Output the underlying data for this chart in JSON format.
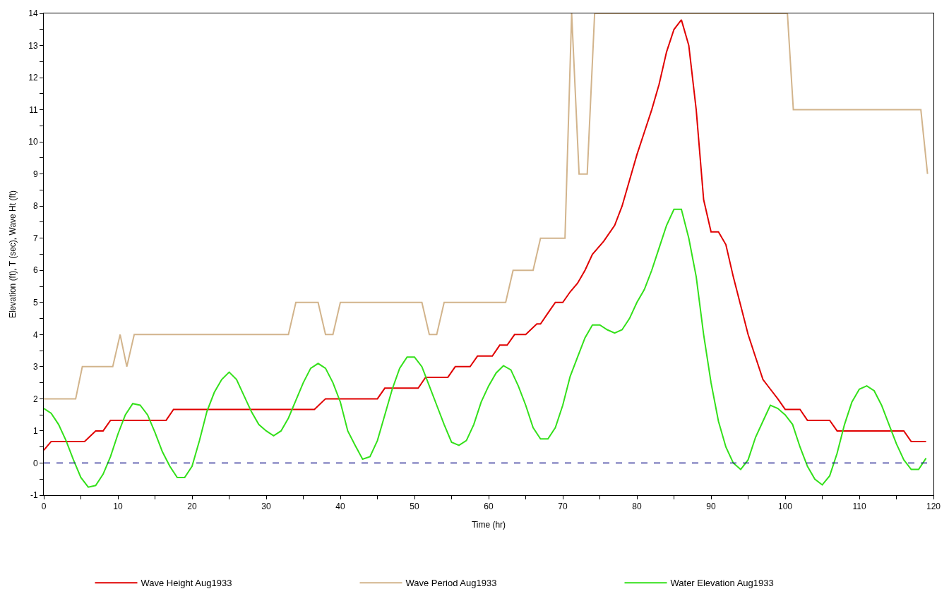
{
  "chart_data": {
    "type": "line",
    "xlabel": "Time (hr)",
    "ylabel": "Elevation (ft), T (sec), Wave Ht (ft)",
    "xlim": [
      0,
      120
    ],
    "ylim": [
      -1,
      14
    ],
    "xticks": [
      0,
      {
        "value": 5,
        "label": null
      },
      10,
      {
        "value": 15,
        "label": null
      },
      20,
      {
        "value": 25,
        "label": null
      },
      30,
      {
        "value": 35,
        "label": null
      },
      40,
      {
        "value": 45,
        "label": null
      },
      50,
      {
        "value": 55,
        "label": null
      },
      60,
      {
        "value": 65,
        "label": null
      },
      70,
      {
        "value": 75,
        "label": null
      },
      80,
      {
        "value": 85,
        "label": null
      },
      90,
      {
        "value": 95,
        "label": null
      },
      100,
      {
        "value": 105,
        "label": null
      },
      110,
      {
        "value": 115,
        "label": null
      },
      120
    ],
    "yticks": [
      -1,
      {
        "value": -0.5,
        "label": null
      },
      0,
      {
        "value": 0.5,
        "label": null
      },
      1,
      {
        "value": 1.5,
        "label": null
      },
      2,
      {
        "value": 2.5,
        "label": null
      },
      3,
      {
        "value": 3.5,
        "label": null
      },
      4,
      {
        "value": 4.5,
        "label": null
      },
      5,
      {
        "value": 5.5,
        "label": null
      },
      6,
      {
        "value": 6.5,
        "label": null
      },
      7,
      {
        "value": 7.5,
        "label": null
      },
      8,
      {
        "value": 8.5,
        "label": null
      },
      9,
      {
        "value": 9.5,
        "label": null
      },
      10,
      {
        "value": 10.5,
        "label": null
      },
      11,
      {
        "value": 11.5,
        "label": null
      },
      12,
      {
        "value": 12.5,
        "label": null
      },
      13,
      {
        "value": 13.5,
        "label": null
      },
      14
    ],
    "legend": "bottom",
    "marker": "none",
    "line_style": "solid",
    "ref_lines": [
      {
        "axis": "y",
        "value": 0,
        "label": null,
        "color": "#000080",
        "line_style": "dashed"
      }
    ],
    "series": [
      {
        "name": "Wave Height Aug1933",
        "color": "#e00000",
        "x": [
          0,
          1,
          5.5,
          7,
          8,
          9,
          16.5,
          17.5,
          36.5,
          38,
          45,
          46,
          50.5,
          51.5,
          54.5,
          55.5,
          57.5,
          58.5,
          60.5,
          61.5,
          62.5,
          63.5,
          65,
          66.5,
          67,
          68,
          69,
          70,
          71,
          72,
          73,
          74,
          75.5,
          77,
          78,
          79,
          80,
          81,
          82,
          83,
          84,
          85,
          86,
          87,
          88,
          89,
          90,
          91,
          92,
          93,
          94,
          95,
          96,
          97,
          98,
          99,
          100,
          102,
          103,
          106,
          107,
          116,
          117,
          119
        ],
        "values": [
          0.4,
          0.67,
          0.67,
          1.0,
          1.0,
          1.33,
          1.33,
          1.67,
          1.67,
          2.0,
          2.0,
          2.33,
          2.33,
          2.67,
          2.67,
          3.0,
          3.0,
          3.33,
          3.33,
          3.67,
          3.67,
          4.0,
          4.0,
          4.33,
          4.33,
          4.67,
          5.0,
          5.0,
          5.33,
          5.6,
          6.0,
          6.5,
          6.9,
          7.4,
          8.0,
          8.8,
          9.6,
          10.3,
          11.0,
          11.8,
          12.8,
          13.5,
          13.8,
          13.0,
          11.0,
          8.2,
          7.2,
          7.2,
          6.8,
          5.8,
          4.9,
          4.0,
          3.3,
          2.6,
          2.3,
          2.0,
          1.67,
          1.67,
          1.33,
          1.33,
          1.0,
          1.0,
          0.67,
          0.67
        ]
      },
      {
        "name": "Wave Period Aug1933",
        "color": "#d2b48c",
        "x": [
          0,
          4.3,
          5.2,
          9.3,
          10.3,
          11.2,
          12.2,
          33,
          34,
          37,
          38,
          39,
          40,
          51,
          52,
          53,
          54,
          62.3,
          63.3,
          66,
          67,
          70.3,
          71.2,
          72.2,
          73.3,
          74.3,
          100.3,
          101.1,
          118.3,
          119.2
        ],
        "values": [
          2,
          2,
          3,
          3,
          4,
          3,
          4,
          4,
          5,
          5,
          4,
          4,
          5,
          5,
          4,
          4,
          5,
          5,
          6,
          6,
          7,
          7,
          14,
          9,
          9,
          14,
          14,
          11,
          11,
          9
        ]
      },
      {
        "name": "Water Elevation Aug1933",
        "color": "#33e01a",
        "x": [
          0,
          1,
          2,
          3,
          4,
          5,
          6,
          7,
          8,
          9,
          10,
          11,
          12,
          13,
          14,
          15,
          16,
          17,
          18,
          19,
          20,
          21,
          22,
          23,
          24,
          25,
          26,
          27,
          28,
          29,
          30,
          31,
          32,
          33,
          34,
          35,
          36,
          37,
          38,
          39,
          40,
          41,
          42,
          43,
          44,
          45,
          46,
          47,
          48,
          49,
          50,
          51,
          52,
          53,
          54,
          55,
          56,
          57,
          58,
          59,
          60,
          61,
          62,
          63,
          64,
          65,
          66,
          67,
          68,
          69,
          70,
          71,
          72,
          73,
          74,
          75,
          76,
          77,
          78,
          79,
          80,
          81,
          82,
          83,
          84,
          85,
          86,
          87,
          88,
          89,
          90,
          91,
          92,
          93,
          94,
          95,
          96,
          97,
          98,
          99,
          100,
          101,
          102,
          103,
          104,
          105,
          106,
          107,
          108,
          109,
          110,
          111,
          112,
          113,
          114,
          115,
          116,
          117,
          118,
          119
        ],
        "values": [
          1.7,
          1.55,
          1.2,
          0.7,
          0.1,
          -0.45,
          -0.75,
          -0.7,
          -0.35,
          0.2,
          0.9,
          1.5,
          1.85,
          1.8,
          1.5,
          0.95,
          0.35,
          -0.1,
          -0.45,
          -0.45,
          -0.1,
          0.7,
          1.6,
          2.2,
          2.6,
          2.83,
          2.6,
          2.1,
          1.6,
          1.2,
          1.0,
          0.85,
          1.0,
          1.4,
          1.95,
          2.5,
          2.95,
          3.1,
          2.95,
          2.5,
          1.9,
          1.0,
          0.55,
          0.12,
          0.2,
          0.7,
          1.5,
          2.3,
          2.95,
          3.3,
          3.3,
          3.0,
          2.4,
          1.8,
          1.2,
          0.65,
          0.55,
          0.7,
          1.2,
          1.9,
          2.4,
          2.8,
          3.03,
          2.9,
          2.4,
          1.8,
          1.1,
          0.75,
          0.75,
          1.1,
          1.8,
          2.7,
          3.3,
          3.9,
          4.3,
          4.3,
          4.15,
          4.05,
          4.15,
          4.5,
          5.0,
          5.4,
          6.0,
          6.7,
          7.4,
          7.9,
          7.9,
          7.0,
          5.8,
          4.0,
          2.5,
          1.3,
          0.5,
          0.0,
          -0.2,
          0.1,
          0.8,
          1.3,
          1.8,
          1.7,
          1.5,
          1.2,
          0.5,
          -0.1,
          -0.5,
          -0.68,
          -0.4,
          0.3,
          1.2,
          1.9,
          2.3,
          2.4,
          2.25,
          1.8,
          1.2,
          0.6,
          0.1,
          -0.2,
          -0.2,
          0.15
        ]
      }
    ]
  }
}
